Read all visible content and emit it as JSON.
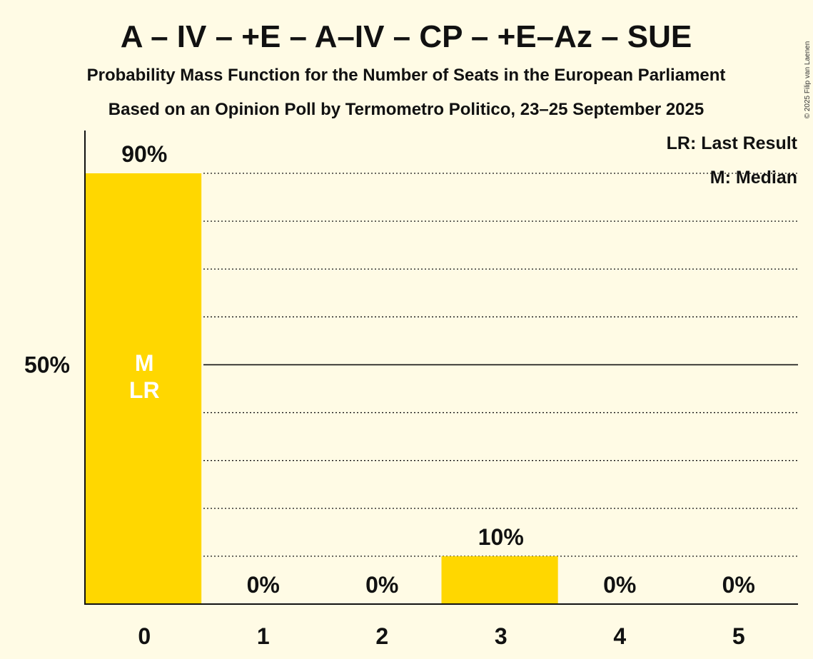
{
  "title": "A – IV – +E – A–IV – CP – +E–Az – SUE",
  "subtitle_1": "Probability Mass Function for the Number of Seats in the European Parliament",
  "subtitle_2": "Based on an Opinion Poll by Termometro Politico, 23–25 September 2025",
  "copyright": "© 2025 Filip van Laenen",
  "legend": {
    "last_result": "LR: Last Result",
    "median": "M: Median"
  },
  "colors": {
    "background": "#fffbe5",
    "bar": "#ffd700",
    "text": "#111111",
    "inbar_text": "#ffffff"
  },
  "chart_data": {
    "type": "bar",
    "categories": [
      "0",
      "1",
      "2",
      "3",
      "4",
      "5"
    ],
    "values": [
      90,
      0,
      0,
      10,
      0,
      0
    ],
    "value_labels": [
      "90%",
      "0%",
      "0%",
      "10%",
      "0%",
      "0%"
    ],
    "unit": "%",
    "ylim": [
      0,
      100
    ],
    "y_ticks": [
      {
        "value": 50,
        "label": "50%"
      }
    ],
    "gridlines": [
      10,
      20,
      30,
      40,
      50,
      60,
      70,
      80,
      90
    ],
    "major_gridline": 50,
    "median_category": "0",
    "last_result_category": "0",
    "median_marker": "M",
    "last_result_marker": "LR"
  }
}
